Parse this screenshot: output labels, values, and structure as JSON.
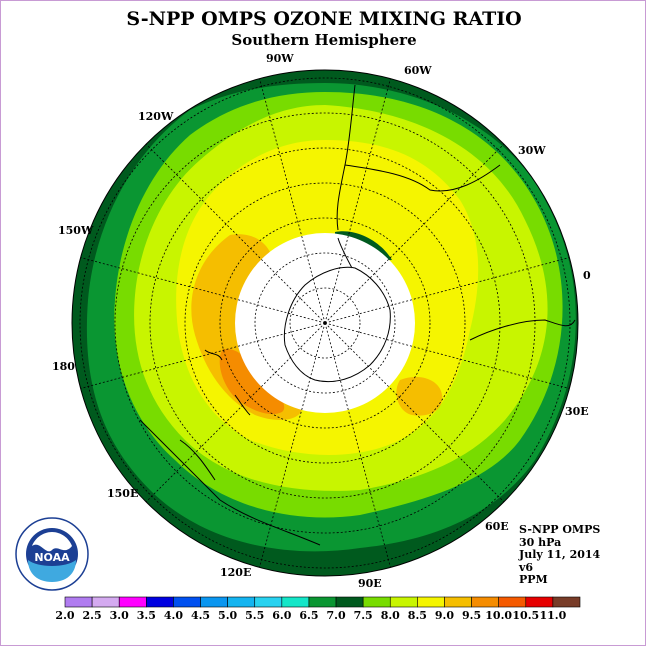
{
  "title": "S-NPP OMPS OZONE MIXING RATIO",
  "subtitle": "Southern Hemisphere",
  "longitude_labels": {
    "w90": "90W",
    "w60": "60W",
    "w30": "30W",
    "w120": "120W",
    "w150": "150W",
    "e0": "0",
    "lon180": "180",
    "e30": "30E",
    "e150": "150E",
    "e60": "60E",
    "e120": "120E",
    "e90": "90E"
  },
  "info": {
    "instrument": "S-NPP OMPS",
    "level": "30 hPa",
    "date": "July 11, 2014",
    "version": "v6",
    "units": "PPM"
  },
  "logo": {
    "text": "NOAA",
    "icon": "noaa-logo-icon"
  },
  "colorbar": {
    "labels": [
      "2.0",
      "2.5",
      "3.0",
      "3.5",
      "4.0",
      "4.5",
      "5.0",
      "5.5",
      "6.0",
      "6.5",
      "7.0",
      "7.5",
      "8.0",
      "8.5",
      "9.0",
      "9.5",
      "10.0",
      "10.5",
      "11.0"
    ],
    "colors": [
      "#b07cf0",
      "#d4aaf0",
      "#ff00ff",
      "#0000e0",
      "#0050f0",
      "#0a96f0",
      "#14b4f0",
      "#28d2f0",
      "#14e6c8",
      "#0a9632",
      "#005a1e",
      "#78dc00",
      "#c8f500",
      "#f5f500",
      "#f5be00",
      "#f58c00",
      "#f55a00",
      "#e60000",
      "#783c28"
    ]
  },
  "map_colors": {
    "ocean_outer": "#005a1e",
    "band_green": "#0a9632",
    "light_green": "#78dc00",
    "yellow_green": "#c8f500",
    "yellow": "#f5f500",
    "orange_light": "#f5be00",
    "orange": "#f58c00",
    "no_data": "#ffffff"
  }
}
